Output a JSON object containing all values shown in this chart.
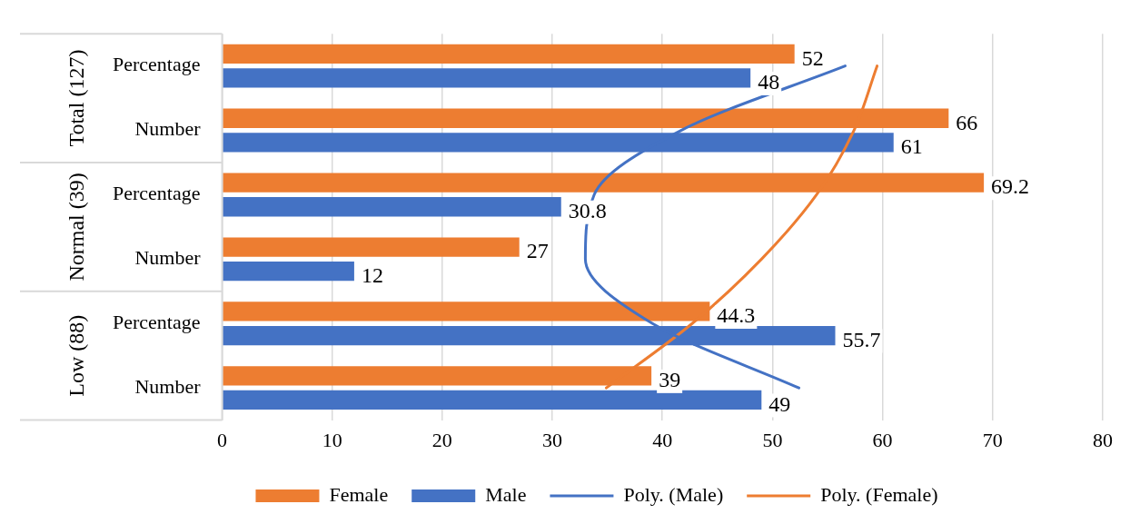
{
  "chart_data": {
    "type": "bar",
    "orientation": "horizontal",
    "categories": [
      "Percentage",
      "Number",
      "Percentage",
      "Number",
      "Percentage",
      "Number"
    ],
    "annotations": [
      "Total (127)",
      "Normal (39)",
      "Low (88)"
    ],
    "series": [
      {
        "name": "Female",
        "color": "#ed7d31",
        "values": [
          52,
          66,
          69.2,
          27,
          44.3,
          39
        ],
        "value_labels": [
          "52",
          "66",
          "69.2",
          "27",
          "44.3",
          "39"
        ]
      },
      {
        "name": "Male",
        "color": "#4472c4",
        "values": [
          48,
          61,
          30.8,
          12,
          55.7,
          49
        ],
        "value_labels": [
          "48",
          "61",
          "30.8",
          "12",
          "55.7",
          "49"
        ]
      },
      {
        "name": "Poly. (Male)",
        "type": "line",
        "color": "#4472c4",
        "values": [
          56.6,
          41.7,
          33.8,
          33.0,
          39.1,
          52.4
        ]
      },
      {
        "name": "Poly. (Female)",
        "type": "line",
        "color": "#ed7d31",
        "values": [
          59.5,
          57.4,
          54.0,
          49.0,
          42.7,
          34.9
        ]
      }
    ],
    "xlim": [
      0,
      80
    ],
    "xticks": [
      0,
      10,
      20,
      30,
      40,
      50,
      60,
      70,
      80
    ],
    "grid": "x",
    "legend": "bottom",
    "marker": "none",
    "line_style": "solid"
  }
}
